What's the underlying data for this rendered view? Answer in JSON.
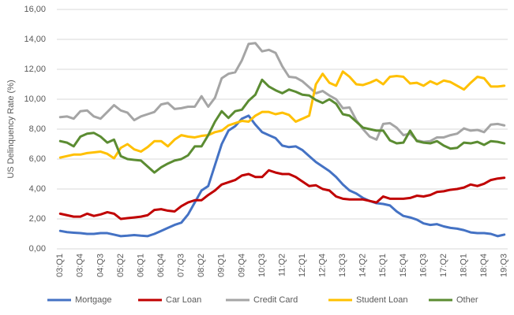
{
  "chart_data": {
    "type": "line",
    "y_label": "US Delinquency Rate (%)",
    "categories": [
      "03:Q1",
      null,
      null,
      "03:Q4",
      null,
      null,
      "04:Q3",
      null,
      null,
      "05:Q2",
      null,
      null,
      "06:Q1",
      null,
      null,
      "06:Q4",
      null,
      null,
      "07:Q3",
      null,
      null,
      "08:Q2",
      null,
      null,
      "09:Q1",
      null,
      null,
      "09:Q4",
      null,
      null,
      "10:Q3",
      null,
      null,
      "11:Q2",
      null,
      null,
      "12:Q1",
      null,
      null,
      "12:Q4",
      null,
      null,
      "13:Q3",
      null,
      null,
      "14:Q2",
      null,
      null,
      "15:Q1",
      null,
      null,
      "15:Q4",
      null,
      null,
      "16:Q3",
      null,
      null,
      "17:Q2",
      null,
      null,
      "18:Q1",
      null,
      null,
      "18:Q4",
      null,
      null,
      "19:Q3"
    ],
    "ylim": [
      0,
      16
    ],
    "yticks": [
      {
        "value": 0,
        "label": "0,00"
      },
      {
        "value": 2,
        "label": "2,00"
      },
      {
        "value": 4,
        "label": "4,00"
      },
      {
        "value": 6,
        "label": "6,00"
      },
      {
        "value": 8,
        "label": "8,00"
      },
      {
        "value": 10,
        "label": "10,00"
      },
      {
        "value": 12,
        "label": "12,00"
      },
      {
        "value": 14,
        "label": "14,00"
      },
      {
        "value": 16,
        "label": "16,00"
      }
    ],
    "grid": true,
    "legend": "bottom",
    "series": [
      {
        "name": "Mortgage",
        "color": "#4472c4",
        "values": [
          1.2,
          1.12,
          1.08,
          1.05,
          1.0,
          1.0,
          1.05,
          1.05,
          0.95,
          0.85,
          0.88,
          0.92,
          0.88,
          0.85,
          1.0,
          1.2,
          1.4,
          1.6,
          1.75,
          2.3,
          3.1,
          3.9,
          4.2,
          5.6,
          7.0,
          7.9,
          8.2,
          8.7,
          8.9,
          8.3,
          7.8,
          7.6,
          7.4,
          6.9,
          6.8,
          6.85,
          6.6,
          6.2,
          5.8,
          5.5,
          5.2,
          4.8,
          4.3,
          3.9,
          3.7,
          3.4,
          3.2,
          3.05,
          3.0,
          2.9,
          2.5,
          2.2,
          2.1,
          1.95,
          1.7,
          1.6,
          1.65,
          1.5,
          1.4,
          1.35,
          1.25,
          1.1,
          1.05,
          1.05,
          1.0,
          0.85,
          0.95
        ]
      },
      {
        "name": "Car Loan",
        "color": "#c00000",
        "values": [
          2.35,
          2.25,
          2.15,
          2.15,
          2.35,
          2.2,
          2.3,
          2.45,
          2.35,
          2.0,
          2.05,
          2.1,
          2.15,
          2.25,
          2.6,
          2.65,
          2.55,
          2.5,
          2.85,
          3.1,
          3.25,
          3.25,
          3.6,
          3.9,
          4.3,
          4.45,
          4.6,
          4.9,
          5.0,
          4.8,
          4.8,
          5.25,
          5.1,
          5.0,
          5.0,
          4.8,
          4.5,
          4.2,
          4.25,
          4.0,
          3.9,
          3.5,
          3.35,
          3.3,
          3.3,
          3.3,
          3.2,
          3.1,
          3.5,
          3.35,
          3.35,
          3.35,
          3.4,
          3.55,
          3.5,
          3.6,
          3.8,
          3.85,
          3.95,
          4.0,
          4.1,
          4.3,
          4.2,
          4.35,
          4.6,
          4.7,
          4.75
        ]
      },
      {
        "name": "Credit Card",
        "color": "#a5a5a5",
        "values": [
          8.8,
          8.85,
          8.7,
          9.2,
          9.25,
          8.85,
          8.7,
          9.15,
          9.6,
          9.25,
          9.1,
          8.6,
          8.85,
          9.0,
          9.15,
          9.65,
          9.75,
          9.35,
          9.4,
          9.5,
          9.5,
          10.2,
          9.5,
          10.1,
          11.4,
          11.7,
          11.8,
          12.6,
          13.7,
          13.75,
          13.2,
          13.3,
          13.1,
          12.2,
          11.5,
          11.45,
          11.2,
          10.8,
          10.4,
          10.55,
          10.25,
          10.0,
          9.4,
          9.45,
          8.6,
          8.0,
          7.5,
          7.3,
          8.35,
          8.4,
          8.1,
          7.6,
          7.7,
          7.25,
          7.15,
          7.2,
          7.45,
          7.45,
          7.6,
          7.7,
          8.05,
          7.9,
          7.95,
          7.8,
          8.3,
          8.35,
          8.25
        ]
      },
      {
        "name": "Student Loan",
        "color": "#ffc000",
        "values": [
          6.1,
          6.2,
          6.3,
          6.3,
          6.4,
          6.45,
          6.5,
          6.35,
          6.05,
          6.75,
          7.0,
          6.65,
          6.5,
          6.8,
          7.2,
          7.2,
          6.85,
          7.3,
          7.6,
          7.5,
          7.45,
          7.55,
          7.6,
          7.8,
          7.9,
          8.25,
          8.4,
          8.55,
          8.5,
          8.9,
          9.15,
          9.15,
          9.0,
          9.1,
          8.95,
          8.5,
          8.7,
          8.9,
          11.0,
          11.7,
          11.1,
          10.9,
          11.85,
          11.5,
          11.0,
          10.95,
          11.1,
          11.3,
          11.0,
          11.5,
          11.55,
          11.5,
          11.05,
          11.1,
          10.9,
          11.2,
          11.0,
          11.25,
          11.15,
          10.9,
          10.65,
          11.1,
          11.5,
          11.4,
          10.85,
          10.85,
          10.9
        ]
      },
      {
        "name": "Other",
        "color": "#5b8c32",
        "values": [
          7.2,
          7.1,
          6.85,
          7.5,
          7.7,
          7.75,
          7.5,
          7.1,
          7.3,
          6.2,
          6.0,
          5.95,
          5.9,
          5.5,
          5.1,
          5.45,
          5.7,
          5.9,
          6.0,
          6.25,
          6.85,
          6.85,
          7.6,
          8.5,
          9.2,
          8.75,
          9.2,
          9.3,
          9.9,
          10.3,
          11.3,
          10.85,
          10.6,
          10.4,
          10.65,
          10.5,
          10.3,
          10.25,
          9.95,
          9.75,
          10.0,
          9.7,
          9.0,
          8.9,
          8.5,
          8.1,
          8.0,
          7.9,
          7.9,
          7.25,
          7.05,
          7.1,
          7.9,
          7.2,
          7.1,
          7.05,
          7.2,
          6.9,
          6.7,
          6.75,
          7.1,
          7.05,
          7.15,
          6.95,
          7.2,
          7.15,
          7.05
        ]
      }
    ]
  }
}
